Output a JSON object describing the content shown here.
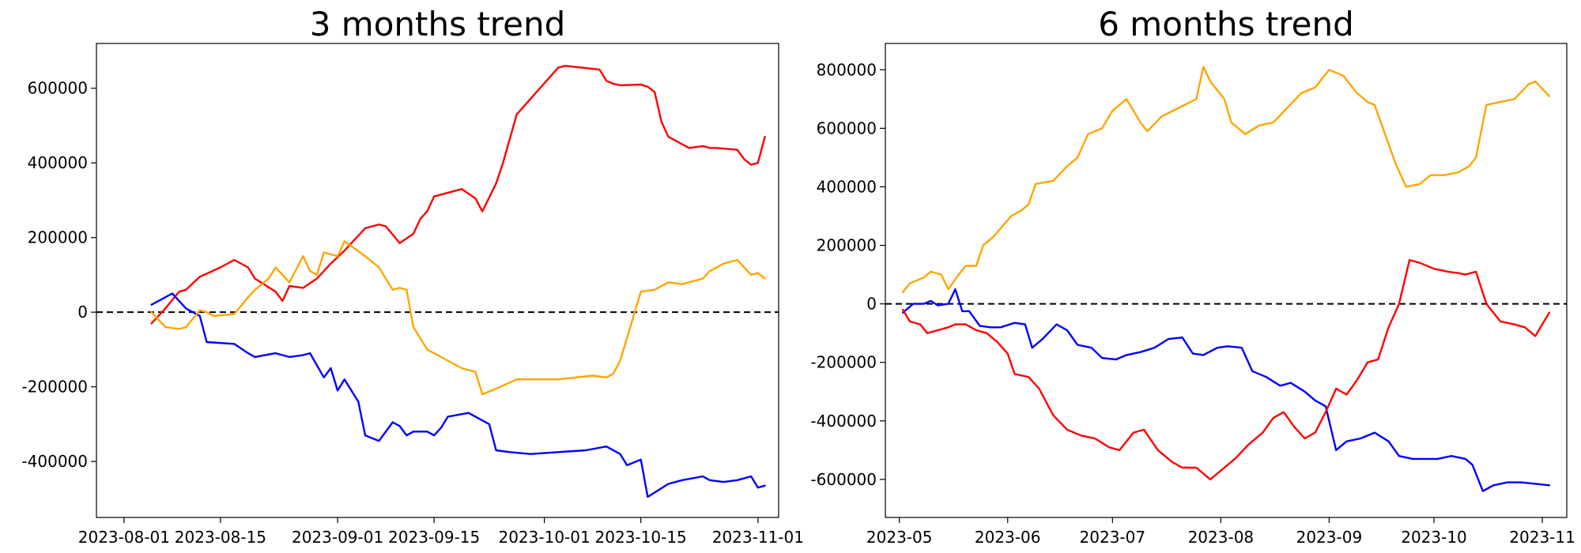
{
  "chart_data": [
    {
      "type": "line",
      "title": "3 months trend",
      "xlabel": "",
      "ylabel": "",
      "x_axis": "date",
      "xlim": [
        "2023-07-28",
        "2023-11-04"
      ],
      "ylim": [
        -550000,
        720000
      ],
      "xticks": [
        "2023-08-01",
        "2023-08-15",
        "2023-09-01",
        "2023-09-15",
        "2023-10-01",
        "2023-10-15",
        "2023-11-01"
      ],
      "yticks": [
        -400000,
        -200000,
        0,
        200000,
        400000,
        600000
      ],
      "grid": false,
      "reference_line": {
        "y": 0,
        "style": "dashed",
        "color": "#000000"
      },
      "series": [
        {
          "color": "#ff0000",
          "x": [
            "2023-08-05",
            "2023-08-07",
            "2023-08-09",
            "2023-08-10",
            "2023-08-12",
            "2023-08-15",
            "2023-08-17",
            "2023-08-19",
            "2023-08-20",
            "2023-08-23",
            "2023-08-24",
            "2023-08-25",
            "2023-08-27",
            "2023-08-29",
            "2023-08-30",
            "2023-08-31",
            "2023-09-02",
            "2023-09-05",
            "2023-09-07",
            "2023-09-08",
            "2023-09-10",
            "2023-09-12",
            "2023-09-13",
            "2023-09-14",
            "2023-09-15",
            "2023-09-19",
            "2023-09-21",
            "2023-09-22",
            "2023-09-24",
            "2023-09-25",
            "2023-09-27",
            "2023-10-03",
            "2023-10-04",
            "2023-10-09",
            "2023-10-10",
            "2023-10-11",
            "2023-10-12",
            "2023-10-15",
            "2023-10-16",
            "2023-10-17",
            "2023-10-18",
            "2023-10-19",
            "2023-10-22",
            "2023-10-24",
            "2023-10-25",
            "2023-10-26",
            "2023-10-29",
            "2023-10-30",
            "2023-10-31",
            "2023-11-01",
            "2023-11-02"
          ],
          "values": [
            -30000,
            10000,
            55000,
            60000,
            95000,
            120000,
            140000,
            120000,
            90000,
            55000,
            30000,
            70000,
            65000,
            90000,
            110000,
            130000,
            165000,
            225000,
            235000,
            230000,
            185000,
            210000,
            250000,
            270000,
            310000,
            330000,
            305000,
            270000,
            345000,
            400000,
            530000,
            655000,
            660000,
            650000,
            620000,
            612000,
            608000,
            610000,
            604000,
            590000,
            510000,
            470000,
            440000,
            445000,
            440000,
            440000,
            435000,
            410000,
            395000,
            400000,
            470000
          ]
        },
        {
          "color": "#0000ff",
          "x": [
            "2023-08-05",
            "2023-08-08",
            "2023-08-10",
            "2023-08-11",
            "2023-08-12",
            "2023-08-13",
            "2023-08-17",
            "2023-08-19",
            "2023-08-20",
            "2023-08-23",
            "2023-08-24",
            "2023-08-25",
            "2023-08-27",
            "2023-08-28",
            "2023-08-30",
            "2023-08-31",
            "2023-09-01",
            "2023-09-02",
            "2023-09-04",
            "2023-09-05",
            "2023-09-07",
            "2023-09-09",
            "2023-09-10",
            "2023-09-11",
            "2023-09-12",
            "2023-09-14",
            "2023-09-15",
            "2023-09-16",
            "2023-09-17",
            "2023-09-20",
            "2023-09-23",
            "2023-09-24",
            "2023-09-26",
            "2023-09-29",
            "2023-10-03",
            "2023-10-07",
            "2023-10-10",
            "2023-10-12",
            "2023-10-13",
            "2023-10-15",
            "2023-10-16",
            "2023-10-19",
            "2023-10-21",
            "2023-10-24",
            "2023-10-25",
            "2023-10-27",
            "2023-10-29",
            "2023-10-31",
            "2023-11-01",
            "2023-11-02"
          ],
          "values": [
            20000,
            50000,
            10000,
            0,
            -10000,
            -80000,
            -85000,
            -110000,
            -120000,
            -110000,
            -115000,
            -120000,
            -115000,
            -110000,
            -175000,
            -150000,
            -210000,
            -180000,
            -240000,
            -330000,
            -345000,
            -295000,
            -305000,
            -330000,
            -320000,
            -320000,
            -330000,
            -310000,
            -280000,
            -270000,
            -300000,
            -370000,
            -375000,
            -380000,
            -375000,
            -370000,
            -360000,
            -380000,
            -410000,
            -395000,
            -495000,
            -460000,
            -450000,
            -440000,
            -450000,
            -455000,
            -450000,
            -440000,
            -470000,
            -465000
          ]
        },
        {
          "color": "#ffa500",
          "x": [
            "2023-08-05",
            "2023-08-07",
            "2023-08-09",
            "2023-08-10",
            "2023-08-12",
            "2023-08-13",
            "2023-08-14",
            "2023-08-17",
            "2023-08-19",
            "2023-08-20",
            "2023-08-22",
            "2023-08-23",
            "2023-08-25",
            "2023-08-27",
            "2023-08-28",
            "2023-08-29",
            "2023-08-30",
            "2023-09-01",
            "2023-09-02",
            "2023-09-05",
            "2023-09-07",
            "2023-09-09",
            "2023-09-10",
            "2023-09-11",
            "2023-09-12",
            "2023-09-13",
            "2023-09-14",
            "2023-09-19",
            "2023-09-21",
            "2023-09-22",
            "2023-09-24",
            "2023-09-27",
            "2023-10-03",
            "2023-10-08",
            "2023-10-10",
            "2023-10-11",
            "2023-10-12",
            "2023-10-15",
            "2023-10-17",
            "2023-10-19",
            "2023-10-21",
            "2023-10-24",
            "2023-10-25",
            "2023-10-27",
            "2023-10-29",
            "2023-10-31",
            "2023-11-01",
            "2023-11-02"
          ],
          "values": [
            0,
            -40000,
            -45000,
            -40000,
            5000,
            0,
            -10000,
            -5000,
            40000,
            60000,
            90000,
            120000,
            80000,
            150000,
            110000,
            100000,
            160000,
            150000,
            190000,
            150000,
            120000,
            60000,
            65000,
            60000,
            -40000,
            -70000,
            -100000,
            -150000,
            -160000,
            -220000,
            -205000,
            -180000,
            -180000,
            -170000,
            -175000,
            -165000,
            -130000,
            55000,
            60000,
            80000,
            75000,
            90000,
            110000,
            130000,
            140000,
            100000,
            105000,
            90000
          ]
        }
      ]
    },
    {
      "type": "line",
      "title": "6 months trend",
      "xlabel": "",
      "ylabel": "",
      "x_axis": "date",
      "xlim": [
        "2023-04-27",
        "2023-11-08"
      ],
      "ylim": [
        -730000,
        890000
      ],
      "xticks": [
        "2023-05",
        "2023-06",
        "2023-07",
        "2023-08",
        "2023-09",
        "2023-10",
        "2023-11"
      ],
      "yticks": [
        -600000,
        -400000,
        -200000,
        0,
        200000,
        400000,
        600000,
        800000
      ],
      "grid": false,
      "reference_line": {
        "y": 0,
        "style": "dashed",
        "color": "#000000"
      },
      "series": [
        {
          "color": "#ffa500",
          "x": [
            "2023-05-02",
            "2023-05-04",
            "2023-05-08",
            "2023-05-10",
            "2023-05-13",
            "2023-05-15",
            "2023-05-18",
            "2023-05-20",
            "2023-05-23",
            "2023-05-25",
            "2023-05-28",
            "2023-06-02",
            "2023-06-05",
            "2023-06-07",
            "2023-06-09",
            "2023-06-14",
            "2023-06-18",
            "2023-06-21",
            "2023-06-24",
            "2023-06-28",
            "2023-07-01",
            "2023-07-05",
            "2023-07-09",
            "2023-07-11",
            "2023-07-15",
            "2023-07-20",
            "2023-07-25",
            "2023-07-27",
            "2023-07-29",
            "2023-08-02",
            "2023-08-04",
            "2023-08-08",
            "2023-08-12",
            "2023-08-16",
            "2023-08-20",
            "2023-08-24",
            "2023-08-28",
            "2023-09-01",
            "2023-09-05",
            "2023-09-09",
            "2023-09-12",
            "2023-09-14",
            "2023-09-17",
            "2023-09-20",
            "2023-09-23",
            "2023-09-27",
            "2023-09-30",
            "2023-10-04",
            "2023-10-08",
            "2023-10-11",
            "2023-10-13",
            "2023-10-16",
            "2023-10-20",
            "2023-10-24",
            "2023-10-28",
            "2023-10-30",
            "2023-11-03"
          ],
          "values": [
            40000,
            70000,
            90000,
            110000,
            100000,
            50000,
            100000,
            130000,
            130000,
            200000,
            230000,
            300000,
            320000,
            340000,
            410000,
            420000,
            470000,
            500000,
            580000,
            600000,
            660000,
            700000,
            620000,
            590000,
            640000,
            670000,
            700000,
            810000,
            760000,
            700000,
            620000,
            580000,
            610000,
            620000,
            670000,
            720000,
            740000,
            800000,
            780000,
            720000,
            690000,
            680000,
            580000,
            480000,
            400000,
            410000,
            440000,
            440000,
            450000,
            470000,
            500000,
            680000,
            690000,
            700000,
            750000,
            760000,
            710000
          ]
        },
        {
          "color": "#0000ff",
          "x": [
            "2023-05-02",
            "2023-05-05",
            "2023-05-08",
            "2023-05-10",
            "2023-05-12",
            "2023-05-15",
            "2023-05-17",
            "2023-05-19",
            "2023-05-21",
            "2023-05-24",
            "2023-05-27",
            "2023-05-30",
            "2023-06-03",
            "2023-06-06",
            "2023-06-08",
            "2023-06-11",
            "2023-06-15",
            "2023-06-18",
            "2023-06-21",
            "2023-06-25",
            "2023-06-28",
            "2023-07-02",
            "2023-07-05",
            "2023-07-09",
            "2023-07-13",
            "2023-07-17",
            "2023-07-21",
            "2023-07-24",
            "2023-07-27",
            "2023-07-31",
            "2023-08-03",
            "2023-08-07",
            "2023-08-10",
            "2023-08-14",
            "2023-08-18",
            "2023-08-21",
            "2023-08-25",
            "2023-08-28",
            "2023-08-31",
            "2023-09-03",
            "2023-09-06",
            "2023-09-10",
            "2023-09-14",
            "2023-09-18",
            "2023-09-21",
            "2023-09-25",
            "2023-09-28",
            "2023-10-02",
            "2023-10-06",
            "2023-10-10",
            "2023-10-12",
            "2023-10-15",
            "2023-10-18",
            "2023-10-22",
            "2023-10-26",
            "2023-10-30",
            "2023-11-03"
          ],
          "values": [
            -30000,
            0,
            0,
            10000,
            -5000,
            0,
            50000,
            -25000,
            -25000,
            -75000,
            -80000,
            -80000,
            -65000,
            -70000,
            -150000,
            -120000,
            -70000,
            -90000,
            -140000,
            -150000,
            -185000,
            -190000,
            -175000,
            -165000,
            -150000,
            -120000,
            -115000,
            -170000,
            -175000,
            -150000,
            -145000,
            -150000,
            -230000,
            -250000,
            -280000,
            -270000,
            -300000,
            -330000,
            -350000,
            -500000,
            -470000,
            -460000,
            -440000,
            -470000,
            -520000,
            -530000,
            -530000,
            -530000,
            -520000,
            -530000,
            -550000,
            -640000,
            -620000,
            -610000,
            -610000,
            -615000,
            -620000
          ]
        },
        {
          "color": "#ff0000",
          "x": [
            "2023-05-02",
            "2023-05-04",
            "2023-05-07",
            "2023-05-09",
            "2023-05-12",
            "2023-05-15",
            "2023-05-17",
            "2023-05-20",
            "2023-05-23",
            "2023-05-26",
            "2023-05-29",
            "2023-06-01",
            "2023-06-03",
            "2023-06-07",
            "2023-06-10",
            "2023-06-14",
            "2023-06-18",
            "2023-06-22",
            "2023-06-26",
            "2023-06-30",
            "2023-07-03",
            "2023-07-07",
            "2023-07-10",
            "2023-07-14",
            "2023-07-18",
            "2023-07-21",
            "2023-07-25",
            "2023-07-29",
            "2023-08-02",
            "2023-08-05",
            "2023-08-09",
            "2023-08-13",
            "2023-08-16",
            "2023-08-19",
            "2023-08-22",
            "2023-08-25",
            "2023-08-28",
            "2023-08-31",
            "2023-09-03",
            "2023-09-06",
            "2023-09-09",
            "2023-09-12",
            "2023-09-15",
            "2023-09-18",
            "2023-09-21",
            "2023-09-24",
            "2023-09-27",
            "2023-10-01",
            "2023-10-05",
            "2023-10-08",
            "2023-10-10",
            "2023-10-13",
            "2023-10-16",
            "2023-10-20",
            "2023-10-24",
            "2023-10-27",
            "2023-10-30",
            "2023-11-03"
          ],
          "values": [
            -20000,
            -60000,
            -70000,
            -100000,
            -90000,
            -80000,
            -70000,
            -70000,
            -90000,
            -100000,
            -130000,
            -170000,
            -240000,
            -250000,
            -290000,
            -380000,
            -430000,
            -450000,
            -460000,
            -490000,
            -500000,
            -440000,
            -430000,
            -500000,
            -540000,
            -560000,
            -560000,
            -600000,
            -560000,
            -530000,
            -480000,
            -440000,
            -390000,
            -370000,
            -420000,
            -460000,
            -440000,
            -370000,
            -290000,
            -310000,
            -260000,
            -200000,
            -190000,
            -80000,
            0,
            150000,
            140000,
            120000,
            110000,
            105000,
            100000,
            110000,
            0,
            -60000,
            -70000,
            -80000,
            -110000,
            -30000
          ]
        }
      ]
    }
  ]
}
